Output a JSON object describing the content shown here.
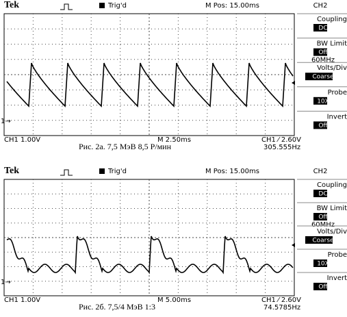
{
  "scopes": [
    {
      "header": {
        "brand": "Tek",
        "status": "Trig'd",
        "position": "M Pos: 15.00ms",
        "channel": "CH2"
      },
      "menu": [
        {
          "label": "Coupling",
          "value": "DC"
        },
        {
          "label": "BW Limit",
          "value": "Off",
          "extra": "60MHz"
        },
        {
          "label": "Volts/Div",
          "value": "Coarse"
        },
        {
          "label": "Probe",
          "value": "10X"
        },
        {
          "label": "Invert",
          "value": "Off"
        }
      ],
      "footer": {
        "ch1": "CH1  1.00V",
        "timebase": "M 2.50ms",
        "trigger": "CH1 ⁄ 2.60V",
        "frequency": "305.555Hz"
      },
      "caption": "Рис. 2а. 7,5 МэВ 8,5 Р/мин"
    },
    {
      "header": {
        "brand": "Tek",
        "status": "Trig'd",
        "position": "M Pos: 15.00ms",
        "channel": "CH2"
      },
      "menu": [
        {
          "label": "Coupling",
          "value": "DC"
        },
        {
          "label": "BW Limit",
          "value": "Off",
          "extra": "60MHz"
        },
        {
          "label": "Volts/Div",
          "value": "Coarse"
        },
        {
          "label": "Probe",
          "value": "10X"
        },
        {
          "label": "Invert",
          "value": "Off"
        }
      ],
      "footer": {
        "ch1": "CH1  1.00V",
        "timebase": "M 5.00ms",
        "trigger": "CH1 ⁄ 2.60V",
        "frequency": "74.5785Hz"
      },
      "caption": "Рис. 2б. 7,5/4 МэВ 1:3"
    }
  ]
}
